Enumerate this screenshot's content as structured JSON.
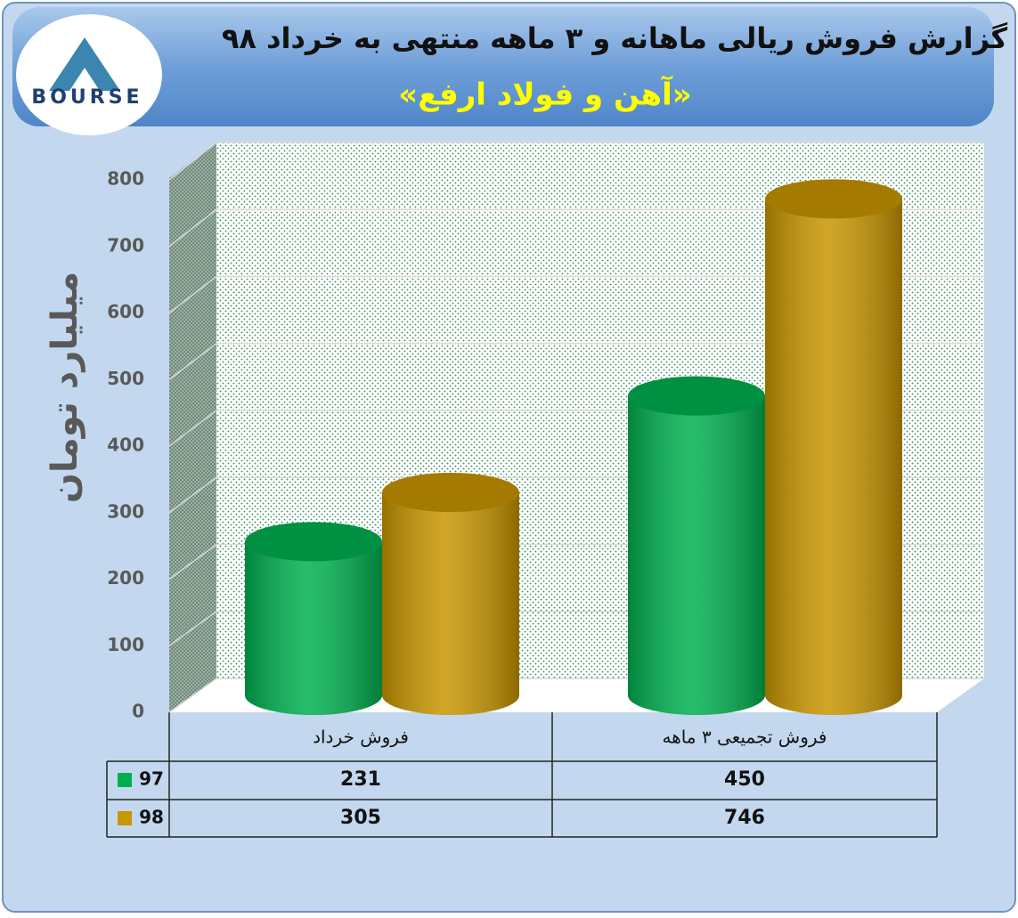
{
  "logo": "BOURSE",
  "chart_data": {
    "type": "bar",
    "title": "گزارش فروش ریالی ماهانه و ۳ ماهه منتهی به خرداد ۹۸",
    "subtitle": "«آهن و فولاد ارفع»",
    "y_label": "میلیارد تومان",
    "categories": [
      "فروش خرداد",
      "فروش تجمیعی ۳ ماهه"
    ],
    "series": [
      {
        "name": "97",
        "color": "#00b050",
        "values": [
          231,
          450
        ]
      },
      {
        "name": "98",
        "color": "#c89600",
        "values": [
          305,
          746
        ]
      }
    ],
    "ylim": [
      0,
      800
    ],
    "yticks": [
      0,
      100,
      200,
      300,
      400,
      500,
      600,
      700,
      800
    ],
    "grid": true
  }
}
